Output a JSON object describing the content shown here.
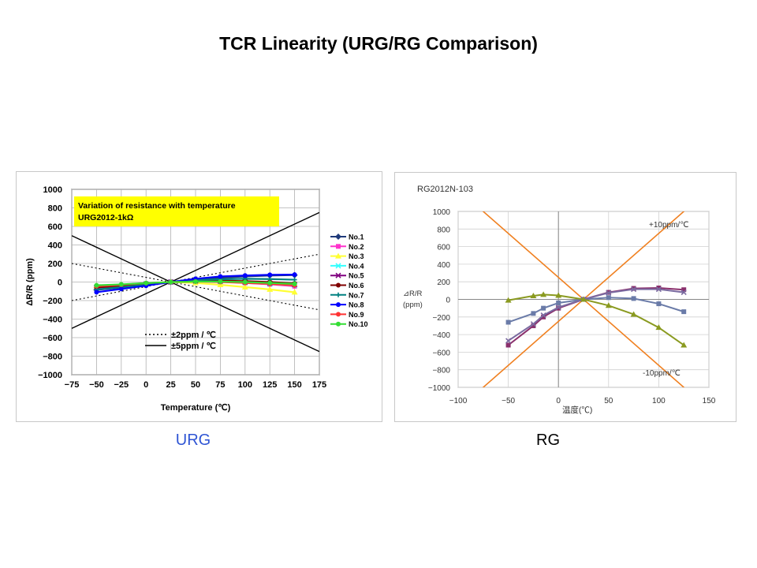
{
  "slide": {
    "title": "TCR Linearity (URG/RG Comparison)",
    "captions": {
      "urg": "URG",
      "rg": "RG"
    }
  },
  "chart_data": [
    {
      "type": "line",
      "id": "urg",
      "title": "",
      "xlabel": "Temperature (℃)",
      "ylabel": "ΔR/R (ppm)",
      "xlim": [
        -75,
        175
      ],
      "ylim": [
        -1000,
        1000
      ],
      "xticks": [
        -75,
        -50,
        -25,
        0,
        25,
        50,
        75,
        100,
        125,
        150,
        175
      ],
      "yticks": [
        -1000,
        -800,
        -600,
        -400,
        -200,
        0,
        200,
        400,
        600,
        800,
        1000
      ],
      "grid": true,
      "legend_position": "right",
      "annotation": [
        "Variation of resistance with temperature",
        "URG2012-1kΩ"
      ],
      "annotation_bg": "#ffff00",
      "reference_lines": [
        {
          "name": "±2ppm / ℃",
          "slopes": [
            2,
            -2
          ],
          "pivot": 25,
          "style": "dotted"
        },
        {
          "name": "±5ppm / ℃",
          "slopes": [
            5,
            -5
          ],
          "pivot": 25,
          "style": "solid"
        }
      ],
      "x": [
        -50,
        -25,
        0,
        25,
        50,
        75,
        100,
        125,
        150
      ],
      "series": [
        {
          "name": "No.1",
          "color": "#1f3a7a",
          "marker": "diamond",
          "values": [
            -85,
            -60,
            -30,
            0,
            25,
            45,
            60,
            70,
            75
          ]
        },
        {
          "name": "No.2",
          "color": "#ff33cc",
          "marker": "square",
          "values": [
            -60,
            -45,
            -25,
            0,
            10,
            5,
            -10,
            -25,
            -45
          ]
        },
        {
          "name": "No.3",
          "color": "#ffff33",
          "marker": "triangle",
          "values": [
            -40,
            -30,
            -20,
            0,
            -10,
            -30,
            -55,
            -80,
            -110
          ]
        },
        {
          "name": "No.4",
          "color": "#33ffff",
          "marker": "x",
          "values": [
            -55,
            -40,
            -20,
            0,
            10,
            5,
            -5,
            -20,
            -35
          ]
        },
        {
          "name": "No.5",
          "color": "#800080",
          "marker": "x",
          "values": [
            -60,
            -42,
            -22,
            0,
            12,
            10,
            0,
            -12,
            -28
          ]
        },
        {
          "name": "No.6",
          "color": "#800000",
          "marker": "circle",
          "values": [
            -58,
            -40,
            -22,
            0,
            15,
            15,
            10,
            0,
            -15
          ]
        },
        {
          "name": "No.7",
          "color": "#008080",
          "marker": "plus",
          "values": [
            -80,
            -55,
            -30,
            0,
            20,
            30,
            35,
            32,
            25
          ]
        },
        {
          "name": "No.8",
          "color": "#0000ff",
          "marker": "circle",
          "values": [
            -110,
            -75,
            -40,
            0,
            35,
            60,
            70,
            78,
            80
          ]
        },
        {
          "name": "No.9",
          "color": "#ff3333",
          "marker": "circle",
          "values": [
            -45,
            -30,
            -12,
            0,
            5,
            0,
            -10,
            -20,
            -35
          ]
        },
        {
          "name": "No.10",
          "color": "#33dd33",
          "marker": "circle",
          "values": [
            -35,
            -25,
            -12,
            0,
            5,
            5,
            0,
            -10,
            -20
          ]
        }
      ]
    },
    {
      "type": "line",
      "id": "rg",
      "title": "RG2012N-103",
      "xlabel": "温度(℃)",
      "ylabel": "⊿R/R\n(ppm)",
      "xlim": [
        -100,
        150
      ],
      "ylim": [
        -1000,
        1000
      ],
      "xticks": [
        -100,
        -50,
        0,
        50,
        100,
        150
      ],
      "yticks": [
        -1000,
        -800,
        -600,
        -400,
        -200,
        0,
        200,
        400,
        600,
        800,
        1000
      ],
      "grid": true,
      "annotations": [
        "+10ppm/℃",
        "-10ppm/℃"
      ],
      "reference_lines": [
        {
          "name": "+10ppm/℃",
          "slope": 10,
          "pivot": 25,
          "color": "#f08020"
        },
        {
          "name": "-10ppm/℃",
          "slope": -10,
          "pivot": 25,
          "color": "#f08020"
        }
      ],
      "x": [
        -50,
        -25,
        -15,
        0,
        25,
        50,
        75,
        100,
        125
      ],
      "series": [
        {
          "color": "#6a7ba8",
          "marker": "square",
          "values": [
            -260,
            -160,
            -100,
            -40,
            0,
            20,
            10,
            -50,
            -140
          ]
        },
        {
          "color": "#8a2f6c",
          "marker": "square",
          "values": [
            -520,
            -300,
            -200,
            -100,
            0,
            80,
            125,
            130,
            110
          ]
        },
        {
          "color": "#7a6aa0",
          "marker": "x",
          "values": [
            -470,
            -280,
            -180,
            -90,
            0,
            75,
            115,
            115,
            80
          ]
        },
        {
          "color": "#8a9a20",
          "marker": "triangle",
          "values": [
            -10,
            40,
            55,
            45,
            0,
            -70,
            -170,
            -320,
            -520
          ]
        }
      ]
    }
  ]
}
